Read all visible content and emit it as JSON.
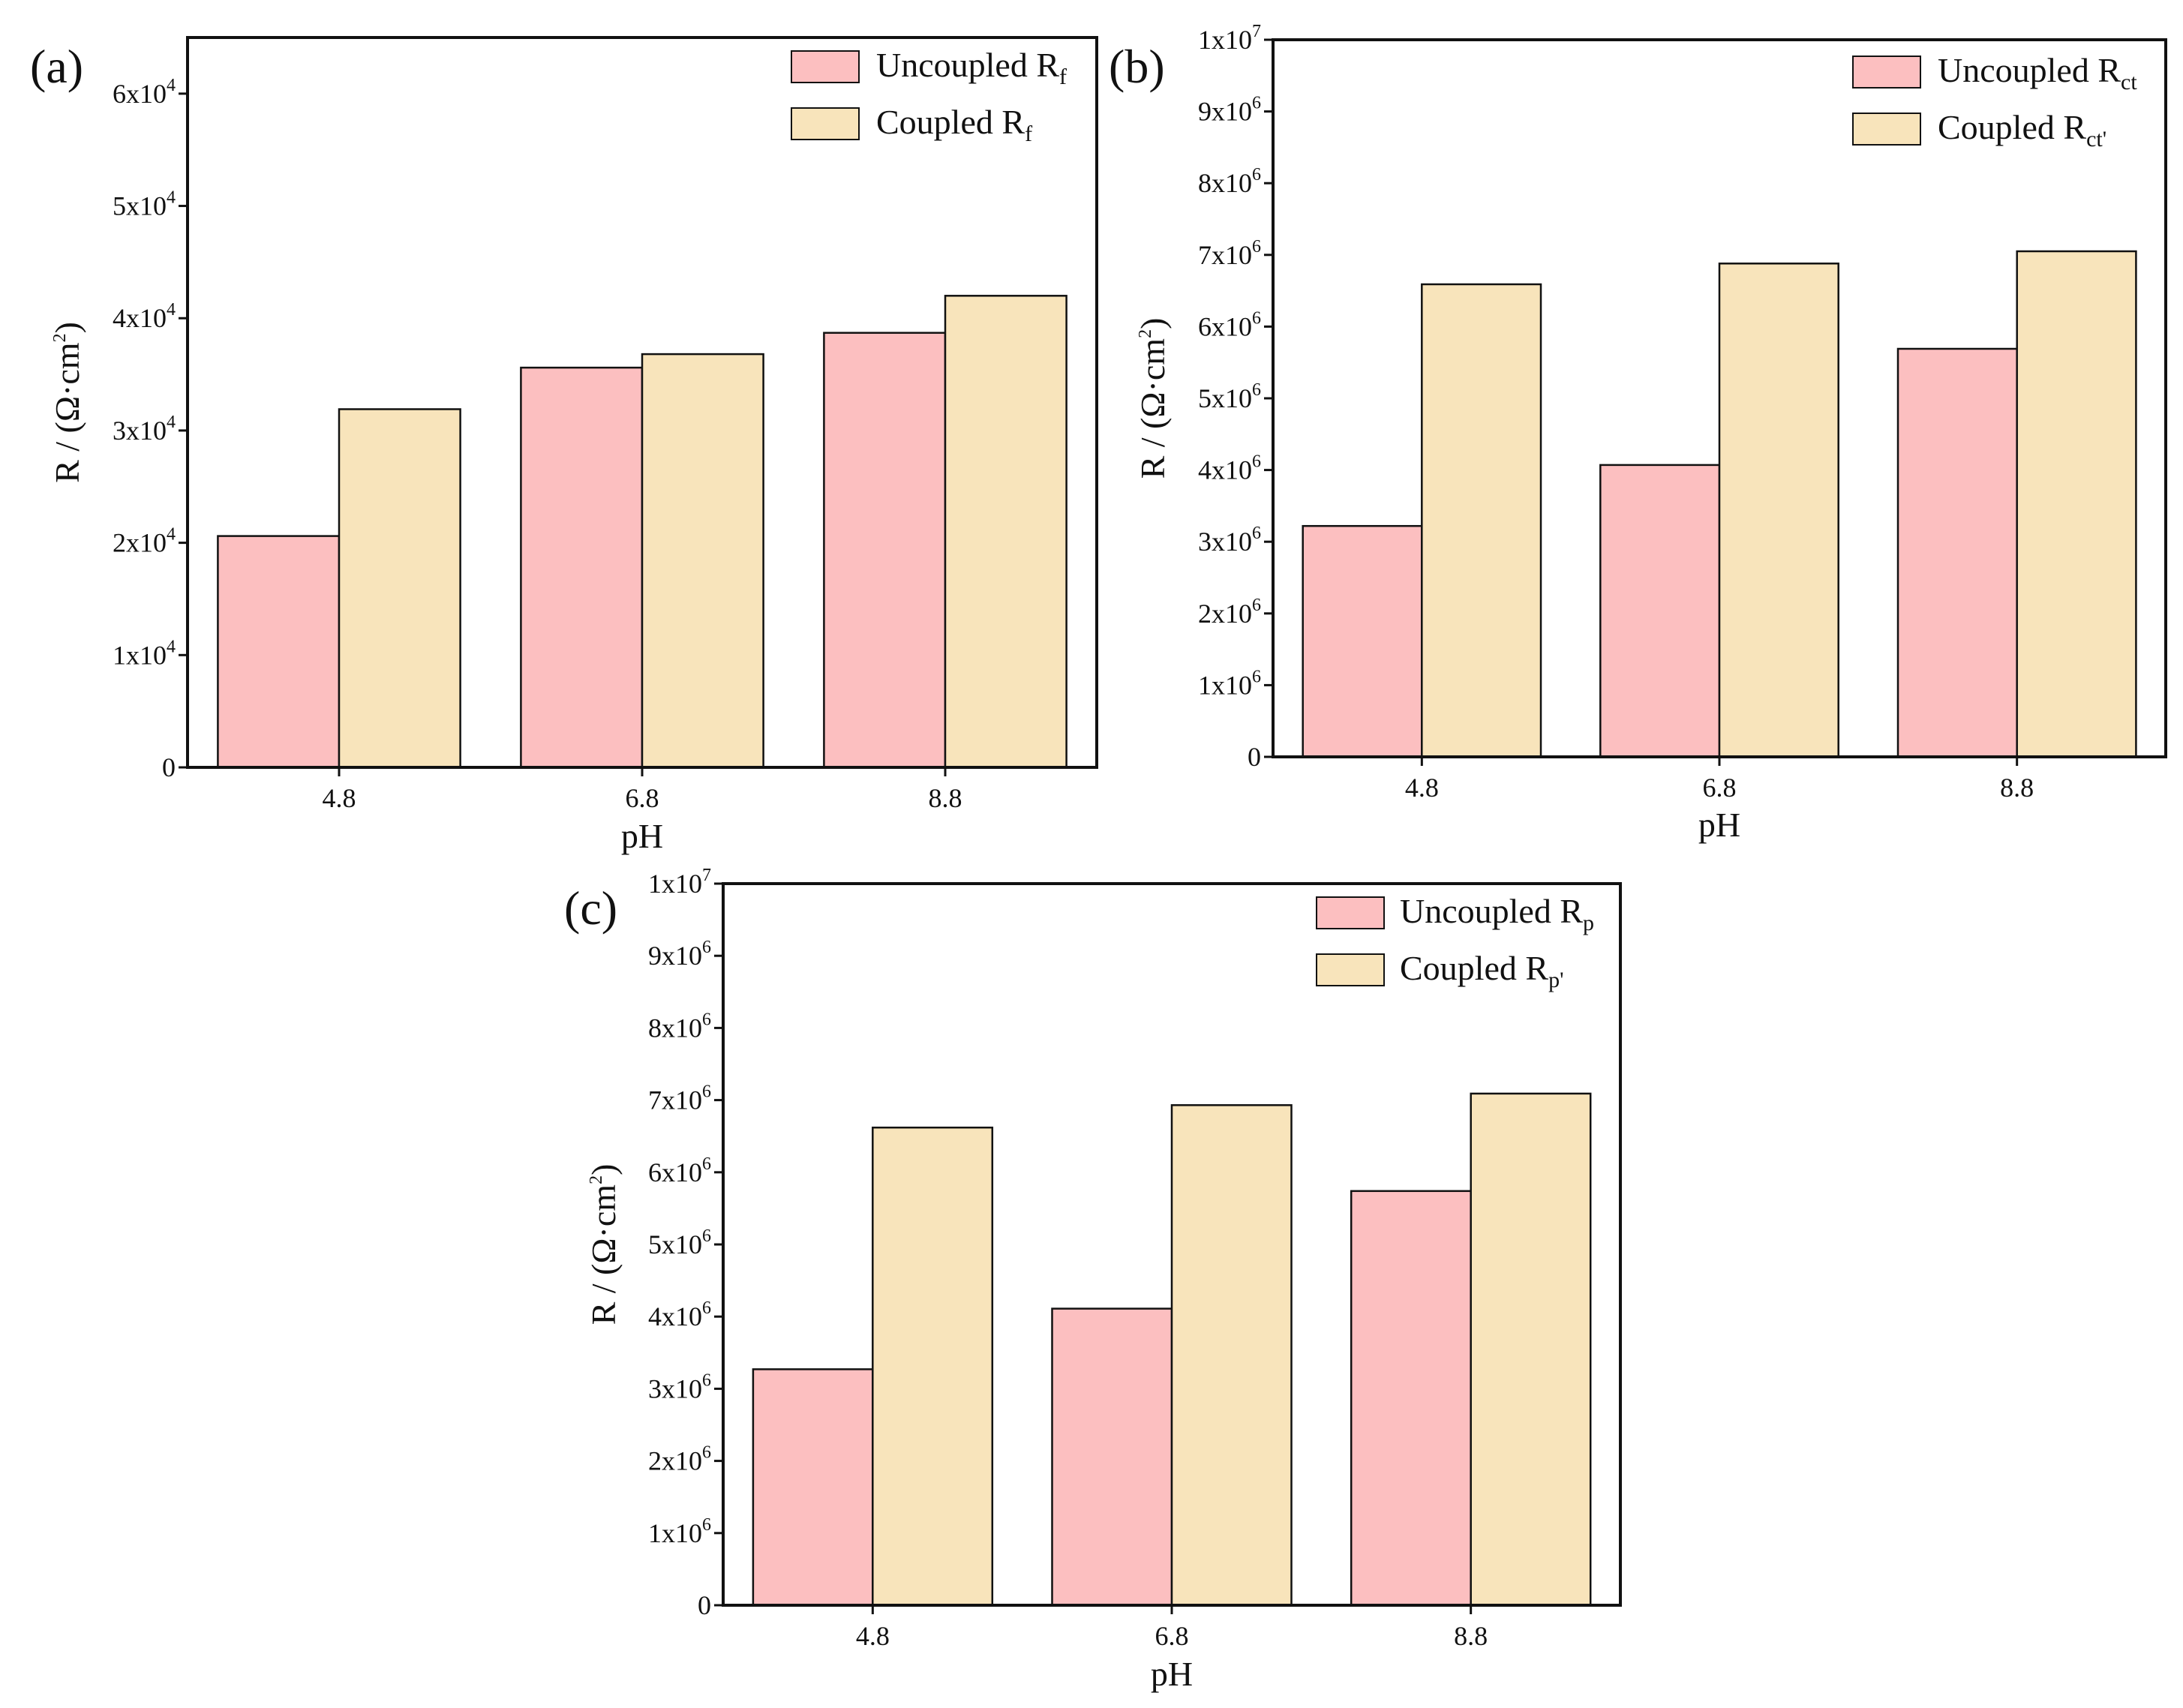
{
  "figure": {
    "background": "#ffffff",
    "colors": {
      "uncoupled": "#fcbfc0",
      "coupled": "#f8e4bb",
      "outline": "#111111"
    }
  },
  "chart_data": [
    {
      "type": "bar",
      "panel_label": "(a)",
      "categories": [
        "4.8",
        "6.8",
        "8.8"
      ],
      "xlabel": "pH",
      "ylabel": "R / (Ω·cm2)",
      "ylabel_parts": {
        "main": "R / (Ω·cm",
        "sup": "2",
        "end": ")"
      },
      "ylim": [
        0,
        65000
      ],
      "yticks": [
        0,
        10000,
        20000,
        30000,
        40000,
        50000,
        60000
      ],
      "ytick_labels": [
        {
          "base": "0",
          "exp": ""
        },
        {
          "base": "1x10",
          "exp": "4"
        },
        {
          "base": "2x10",
          "exp": "4"
        },
        {
          "base": "3x10",
          "exp": "4"
        },
        {
          "base": "4x10",
          "exp": "4"
        },
        {
          "base": "5x10",
          "exp": "4"
        },
        {
          "base": "6x10",
          "exp": "4"
        }
      ],
      "legend_position": "top-right",
      "series": [
        {
          "name": "Uncoupled Rf",
          "legend": {
            "text": "Uncoupled R",
            "sub": "f"
          },
          "color": "#fcbfc0",
          "values": [
            20600,
            35600,
            38700
          ]
        },
        {
          "name": "Coupled Rf",
          "legend": {
            "text": "Coupled R",
            "sub": "f"
          },
          "color": "#f8e4bb",
          "values": [
            31900,
            36800,
            42000
          ]
        }
      ]
    },
    {
      "type": "bar",
      "panel_label": "(b)",
      "categories": [
        "4.8",
        "6.8",
        "8.8"
      ],
      "xlabel": "pH",
      "ylabel": "R / (Ω·cm2)",
      "ylabel_parts": {
        "main": "R / (Ω·cm",
        "sup": "2",
        "end": ")"
      },
      "ylim": [
        0,
        10000000
      ],
      "yticks": [
        0,
        1000000,
        2000000,
        3000000,
        4000000,
        5000000,
        6000000,
        7000000,
        8000000,
        9000000,
        10000000
      ],
      "ytick_labels": [
        {
          "base": "0",
          "exp": ""
        },
        {
          "base": "1x10",
          "exp": "6"
        },
        {
          "base": "2x10",
          "exp": "6"
        },
        {
          "base": "3x10",
          "exp": "6"
        },
        {
          "base": "4x10",
          "exp": "6"
        },
        {
          "base": "5x10",
          "exp": "6"
        },
        {
          "base": "6x10",
          "exp": "6"
        },
        {
          "base": "7x10",
          "exp": "6"
        },
        {
          "base": "8x10",
          "exp": "6"
        },
        {
          "base": "9x10",
          "exp": "6"
        },
        {
          "base": "1x10",
          "exp": "7"
        }
      ],
      "legend_position": "top-right",
      "series": [
        {
          "name": "Uncoupled Rct",
          "legend": {
            "text": "Uncoupled R",
            "sub": "ct"
          },
          "color": "#fcbfc0",
          "values": [
            3220000,
            4070000,
            5690000
          ]
        },
        {
          "name": "Coupled Rct'",
          "legend": {
            "text": "Coupled R",
            "sub": "ct'"
          },
          "color": "#f8e4bb",
          "values": [
            6590000,
            6880000,
            7050000
          ]
        }
      ]
    },
    {
      "type": "bar",
      "panel_label": "(c)",
      "categories": [
        "4.8",
        "6.8",
        "8.8"
      ],
      "xlabel": "pH",
      "ylabel": "R / (Ω·cm2)",
      "ylabel_parts": {
        "main": "R / (Ω·cm",
        "sup": "2",
        "end": ")"
      },
      "ylim": [
        0,
        10000000
      ],
      "yticks": [
        0,
        1000000,
        2000000,
        3000000,
        4000000,
        5000000,
        6000000,
        7000000,
        8000000,
        9000000,
        10000000
      ],
      "ytick_labels": [
        {
          "base": "0",
          "exp": ""
        },
        {
          "base": "1x10",
          "exp": "6"
        },
        {
          "base": "2x10",
          "exp": "6"
        },
        {
          "base": "3x10",
          "exp": "6"
        },
        {
          "base": "4x10",
          "exp": "6"
        },
        {
          "base": "5x10",
          "exp": "6"
        },
        {
          "base": "6x10",
          "exp": "6"
        },
        {
          "base": "7x10",
          "exp": "6"
        },
        {
          "base": "8x10",
          "exp": "6"
        },
        {
          "base": "9x10",
          "exp": "6"
        },
        {
          "base": "1x10",
          "exp": "7"
        }
      ],
      "legend_position": "top-right",
      "series": [
        {
          "name": "Uncoupled Rp",
          "legend": {
            "text": "Uncoupled R",
            "sub": "p"
          },
          "color": "#fcbfc0",
          "values": [
            3270000,
            4110000,
            5740000
          ]
        },
        {
          "name": "Coupled Rp'",
          "legend": {
            "text": "Coupled R",
            "sub": "p'"
          },
          "color": "#f8e4bb",
          "values": [
            6620000,
            6930000,
            7090000
          ]
        }
      ]
    }
  ]
}
